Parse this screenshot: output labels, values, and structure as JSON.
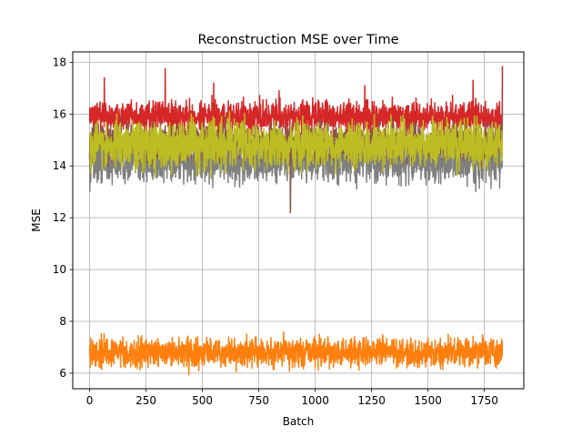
{
  "chart_data": {
    "type": "line",
    "title": "Reconstruction MSE over Time",
    "xlabel": "Batch",
    "ylabel": "MSE",
    "xlim": [
      -75,
      1925
    ],
    "ylim": [
      5.4,
      18.4
    ],
    "xticks": [
      0,
      250,
      500,
      750,
      1000,
      1250,
      1500,
      1750
    ],
    "yticks": [
      6,
      8,
      10,
      12,
      14,
      16,
      18
    ],
    "grid": true,
    "legend": "none",
    "x_range": [
      0,
      1830
    ],
    "series": [
      {
        "color": "#7f7f7f",
        "mean": 14.2,
        "noise_amplitude": 0.42,
        "spikes": [
          [
            140,
            15.9
          ],
          [
            420,
            15.7
          ],
          [
            890,
            12.3
          ],
          [
            1690,
            15.6
          ]
        ]
      },
      {
        "color": "#d62728",
        "mean": 15.9,
        "noise_amplitude": 0.3,
        "spikes": [
          [
            65,
            17.4
          ],
          [
            335,
            17.75
          ],
          [
            550,
            17.2
          ],
          [
            840,
            16.9
          ],
          [
            1220,
            17.1
          ],
          [
            1700,
            17.3
          ],
          [
            1830,
            17.85
          ]
        ]
      },
      {
        "color": "#8c564b",
        "mean": 14.9,
        "noise_amplitude": 0.35,
        "spikes": [
          [
            890,
            12.2
          ],
          [
            1830,
            16.2
          ]
        ]
      },
      {
        "color": "#bcbd22",
        "mean": 14.8,
        "noise_amplitude": 0.45,
        "spikes": [
          [
            120,
            16.0
          ],
          [
            620,
            16.1
          ],
          [
            1380,
            15.9
          ]
        ]
      },
      {
        "color": "#ff7f0e",
        "mean": 6.8,
        "noise_amplitude": 0.28,
        "spikes": [
          [
            440,
            5.95
          ],
          [
            860,
            7.6
          ],
          [
            1590,
            7.5
          ]
        ]
      }
    ]
  }
}
